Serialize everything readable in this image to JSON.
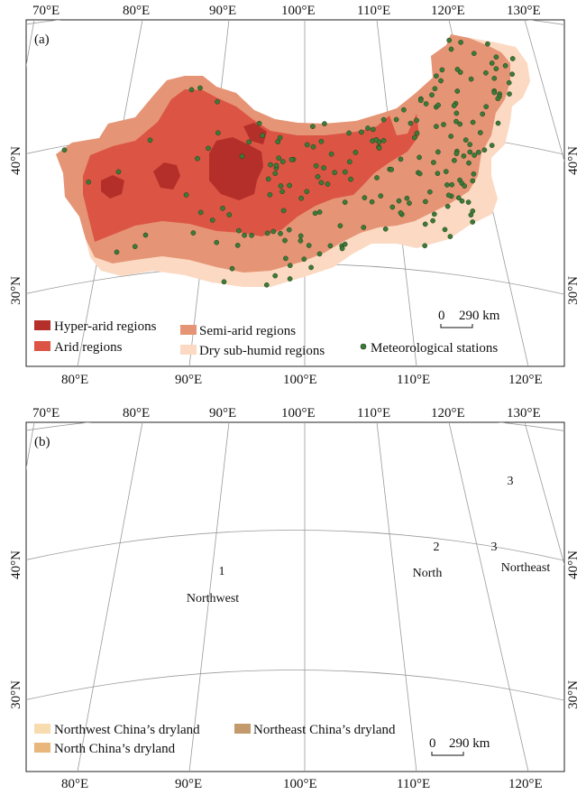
{
  "colors": {
    "hyper_arid": "#b42f2a",
    "arid": "#dc5444",
    "semi_arid": "#e59576",
    "dry_sub_humid": "#fbd9c2",
    "station": "#3d7a37",
    "northwest": "#f7dcb0",
    "north": "#e9b77c",
    "northeast": "#c39a6c",
    "graticule": "#9a9a9a"
  },
  "panel_a": {
    "label": "(a)",
    "top_lon": [
      "70°E",
      "80°E",
      "90°E",
      "100°E",
      "110°E",
      "120°E",
      "130°E"
    ],
    "bottom_lon": [
      "80°E",
      "90°E",
      "100°E",
      "110°E",
      "120°E"
    ],
    "left_lat": [
      "40°N",
      "30°N"
    ],
    "right_lat": [
      "40°N",
      "30°N"
    ],
    "legend": {
      "hyper_arid": "Hyper-arid regions",
      "arid": "Arid regions",
      "semi_arid": "Semi-arid regions",
      "dry_sub_humid": "Dry sub-humid regions",
      "stations": "Meteorological stations"
    },
    "scale": {
      "zero": "0",
      "value": "290 km"
    }
  },
  "panel_b": {
    "label": "(b)",
    "top_lon": [
      "70°E",
      "80°E",
      "90°E",
      "100°E",
      "110°E",
      "120°E",
      "130°E"
    ],
    "bottom_lon": [
      "80°E",
      "90°E",
      "100°E",
      "110°E",
      "120°E"
    ],
    "left_lat": [
      "40°N",
      "30°N"
    ],
    "right_lat": [
      "40°N",
      "30°N"
    ],
    "regions": {
      "northwest": {
        "number": "1",
        "name": "Northwest"
      },
      "north": {
        "number": "2",
        "name": "North"
      },
      "northeast_a": {
        "number": "3"
      },
      "northeast_b": {
        "number": "3",
        "name": "Northeast"
      }
    },
    "legend": {
      "northwest": "Northwest China’s dryland",
      "north": "North China’s dryland",
      "northeast": "Northeast China’s dryland"
    },
    "scale": {
      "zero": "0",
      "value": "290 km"
    }
  }
}
